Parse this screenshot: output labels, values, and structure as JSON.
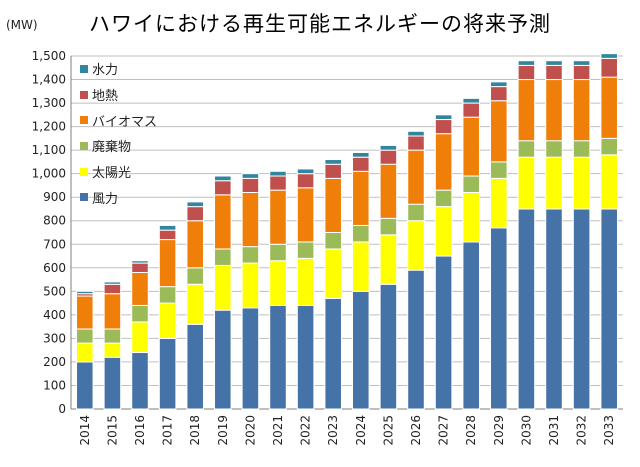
{
  "chart_data": {
    "type": "bar",
    "stacked": true,
    "title": "ハワイにおける再生可能エネルギーの将来予測",
    "unit_label": "(MW)",
    "xlabel": "",
    "ylabel": "",
    "ylim": [
      0,
      1500
    ],
    "yticks": [
      "0",
      "100",
      "200",
      "300",
      "400",
      "500",
      "600",
      "700",
      "800",
      "900",
      "1,000",
      "1,100",
      "1,200",
      "1,300",
      "1,400",
      "1,500"
    ],
    "grid": true,
    "legend_position": "top-left",
    "categories": [
      "2014",
      "2015",
      "2016",
      "2017",
      "2018",
      "2019",
      "2020",
      "2021",
      "2022",
      "2023",
      "2024",
      "2025",
      "2026",
      "2027",
      "2028",
      "2029",
      "2030",
      "2031",
      "2032",
      "2033"
    ],
    "series": [
      {
        "name": "風力",
        "color": "#4572a7",
        "values": [
          200,
          220,
          240,
          300,
          360,
          420,
          430,
          440,
          440,
          470,
          500,
          530,
          590,
          650,
          710,
          770,
          850,
          850,
          850,
          850
        ]
      },
      {
        "name": "太陽光",
        "color": "#ffff00",
        "values": [
          80,
          60,
          130,
          150,
          170,
          190,
          190,
          190,
          200,
          210,
          210,
          210,
          210,
          210,
          210,
          210,
          220,
          220,
          220,
          230
        ]
      },
      {
        "name": "廃棄物",
        "color": "#9bbb59",
        "values": [
          60,
          60,
          70,
          70,
          70,
          70,
          70,
          70,
          70,
          70,
          70,
          70,
          70,
          70,
          70,
          70,
          70,
          70,
          70,
          70
        ]
      },
      {
        "name": "バイオマス",
        "color": "#f07f09",
        "values": [
          140,
          150,
          140,
          200,
          200,
          230,
          230,
          230,
          230,
          230,
          230,
          230,
          230,
          240,
          250,
          260,
          260,
          260,
          260,
          260
        ]
      },
      {
        "name": "地熱",
        "color": "#c0504d",
        "values": [
          10,
          40,
          40,
          40,
          60,
          60,
          60,
          60,
          60,
          60,
          60,
          60,
          60,
          60,
          60,
          60,
          60,
          60,
          60,
          80
        ]
      },
      {
        "name": "水力",
        "color": "#31859c",
        "values": [
          10,
          10,
          10,
          20,
          20,
          20,
          20,
          20,
          20,
          20,
          20,
          20,
          20,
          20,
          20,
          20,
          20,
          20,
          20,
          20
        ]
      }
    ]
  }
}
